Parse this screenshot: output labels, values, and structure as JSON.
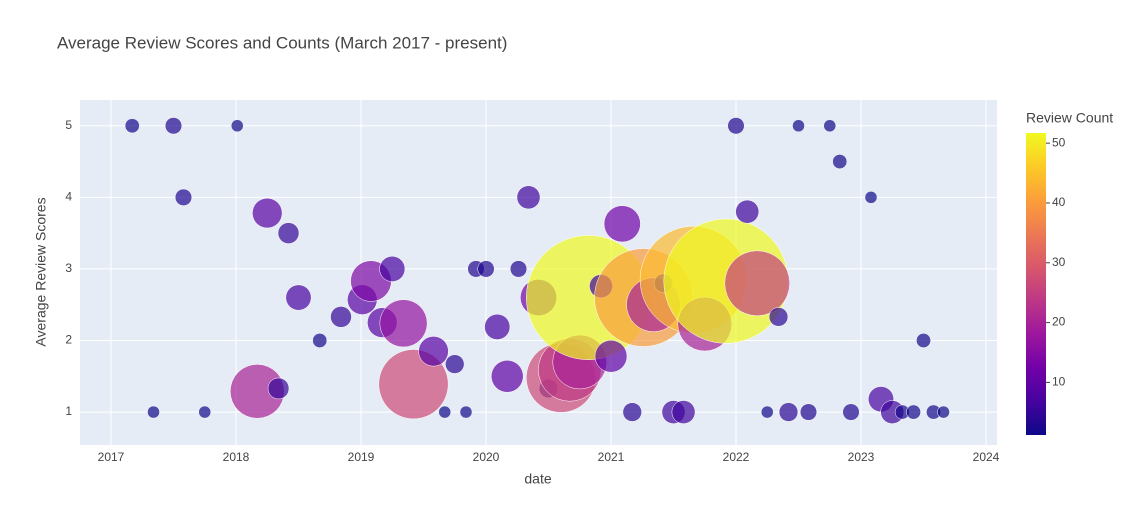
{
  "chart_data": {
    "type": "scatter",
    "title": "Average Review Scores and Counts (March 2017 - present)",
    "x_label": "date",
    "y_label": "Average Review Scores",
    "colorbar_title": "Review Count",
    "x": [
      2017.17,
      2017.5,
      2017.34,
      2017.58,
      2017.75,
      2018.01,
      2018.17,
      2018.34,
      2018.25,
      2018.42,
      2018.5,
      2018.67,
      2018.84,
      2019.01,
      2019.08,
      2019.17,
      2019.25,
      2019.34,
      2019.42,
      2019.58,
      2019.67,
      2019.75,
      2019.84,
      2019.92,
      2020.0,
      2020.09,
      2020.17,
      2020.26,
      2020.34,
      2020.42,
      2020.5,
      2020.6,
      2020.67,
      2020.75,
      2020.82,
      2020.92,
      2021.0,
      2021.09,
      2021.17,
      2021.26,
      2021.34,
      2021.42,
      2021.5,
      2021.58,
      2021.66,
      2021.75,
      2021.92,
      2022.0,
      2022.09,
      2022.17,
      2022.25,
      2022.34,
      2022.42,
      2022.5,
      2022.58,
      2022.75,
      2022.83,
      2022.92,
      2023.08,
      2023.16,
      2023.25,
      2023.33,
      2023.42,
      2023.5,
      2023.58,
      2023.66
    ],
    "values": [
      5,
      5,
      1,
      4,
      1,
      5,
      1.29,
      1.33,
      3.78,
      3.5,
      2.6,
      2,
      2.33,
      2.57,
      2.83,
      2.25,
      3,
      2.24,
      1.39,
      1.85,
      1,
      1.67,
      1,
      3,
      3,
      2.19,
      1.5,
      3,
      4,
      2.6,
      1.33,
      1.48,
      1.59,
      1.7,
      2.6,
      2.76,
      1.78,
      3.63,
      1,
      2.6,
      2.5,
      2.8,
      1,
      1,
      2.85,
      2.23,
      2.83,
      5,
      3.8,
      2.8,
      1,
      2.33,
      1,
      5,
      1,
      5,
      4.5,
      1,
      4,
      1.18,
      1,
      1,
      1,
      2,
      1,
      1
    ],
    "sizes": [
      2,
      3,
      1,
      3,
      1,
      1,
      20,
      5,
      9,
      5,
      7,
      2,
      5,
      9,
      14,
      9,
      7,
      17,
      27,
      9,
      1,
      4,
      1,
      3,
      3,
      7,
      10,
      3,
      6,
      12,
      4,
      27,
      24,
      20,
      52,
      6,
      10,
      12,
      4,
      40,
      20,
      4,
      6,
      6,
      44,
      20,
      52,
      3,
      6,
      25,
      1,
      4,
      4,
      1,
      3,
      1,
      2,
      3,
      1,
      7,
      6,
      2,
      2,
      2,
      2,
      1
    ],
    "colorscale": [
      "#0d0887",
      "#46039f",
      "#7201a8",
      "#9c179e",
      "#bd3786",
      "#d8576b",
      "#ed7953",
      "#fb9f3a",
      "#fdca26",
      "#f0f921"
    ],
    "xlim": [
      2016.752,
      2024.088
    ],
    "xticks": [
      2017,
      2018,
      2019,
      2020,
      2021,
      2022,
      2023,
      2024
    ],
    "ylim": [
      0.54,
      5.36
    ],
    "yticks": [
      1,
      2,
      3,
      4,
      5
    ],
    "colorlim": [
      1.2,
      51.7
    ],
    "colorticks": [
      10,
      20,
      30,
      40,
      50
    ],
    "grid": true
  }
}
